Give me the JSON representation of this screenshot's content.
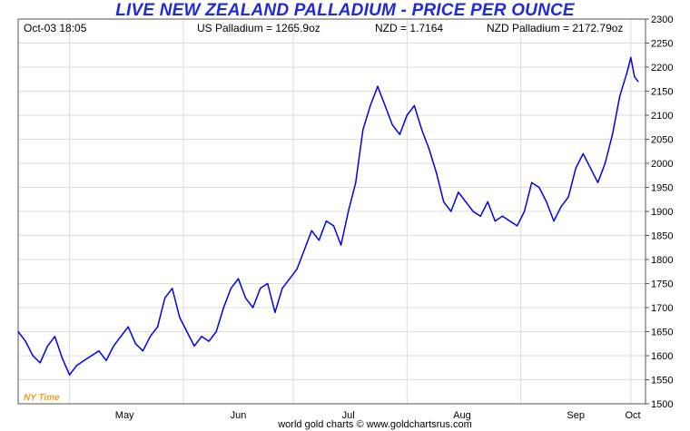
{
  "header": {
    "date_time": "Oct-03  18:05",
    "us_price": "US Palladium = 1265.9oz",
    "fx": "NZD = 1.7164",
    "local_price": "NZD Palladium = 2172.79oz"
  },
  "footer": {
    "timezone": "NY Time",
    "credit": "world gold charts © www.goldchartsrus.com"
  },
  "colors": {
    "line": "#0000ee",
    "title": "#1f2ad8",
    "grid": "#dcdcdc",
    "timezone": "#f0a020"
  },
  "chart_data": {
    "type": "line",
    "title": "LIVE NEW ZEALAND PALLADIUM - PRICE PER OUNCE",
    "xlabel": "",
    "ylabel": "",
    "ylim": [
      1500,
      2300
    ],
    "y_ticks": [
      1500,
      1550,
      1600,
      1650,
      1700,
      1750,
      1800,
      1850,
      1900,
      1950,
      2000,
      2050,
      2100,
      2150,
      2200,
      2250,
      2300
    ],
    "x_ticks": [
      "May",
      "Jun",
      "Jul",
      "Aug",
      "Sep",
      "Oct"
    ],
    "x": [
      "Apr-17",
      "Apr-19",
      "Apr-21",
      "Apr-23",
      "Apr-25",
      "Apr-27",
      "Apr-29",
      "May-01",
      "May-03",
      "May-05",
      "May-07",
      "May-09",
      "May-11",
      "May-13",
      "May-15",
      "May-17",
      "May-19",
      "May-21",
      "May-23",
      "May-25",
      "May-27",
      "May-29",
      "May-31",
      "Jun-02",
      "Jun-04",
      "Jun-06",
      "Jun-08",
      "Jun-10",
      "Jun-12",
      "Jun-14",
      "Jun-16",
      "Jun-18",
      "Jun-20",
      "Jun-22",
      "Jun-24",
      "Jun-26",
      "Jun-28",
      "Jun-30",
      "Jul-02",
      "Jul-04",
      "Jul-06",
      "Jul-08",
      "Jul-10",
      "Jul-12",
      "Jul-14",
      "Jul-16",
      "Jul-18",
      "Jul-20",
      "Jul-22",
      "Jul-24",
      "Jul-26",
      "Jul-28",
      "Jul-30",
      "Aug-01",
      "Aug-03",
      "Aug-05",
      "Aug-07",
      "Aug-09",
      "Aug-11",
      "Aug-13",
      "Aug-15",
      "Aug-17",
      "Aug-19",
      "Aug-21",
      "Aug-23",
      "Aug-25",
      "Aug-27",
      "Aug-29",
      "Aug-31",
      "Sep-02",
      "Sep-04",
      "Sep-06",
      "Sep-08",
      "Sep-10",
      "Sep-12",
      "Sep-14",
      "Sep-16",
      "Sep-18",
      "Sep-20",
      "Sep-22",
      "Sep-24",
      "Sep-26",
      "Sep-28",
      "Sep-30",
      "Oct-01",
      "Oct-02",
      "Oct-03"
    ],
    "series": [
      {
        "values": [
          1650,
          1630,
          1600,
          1585,
          1620,
          1640,
          1595,
          1560,
          1580,
          1590,
          1600,
          1610,
          1590,
          1620,
          1640,
          1660,
          1625,
          1610,
          1640,
          1660,
          1720,
          1740,
          1680,
          1650,
          1620,
          1640,
          1630,
          1650,
          1700,
          1740,
          1760,
          1720,
          1700,
          1740,
          1750,
          1690,
          1740,
          1760,
          1780,
          1820,
          1860,
          1840,
          1880,
          1870,
          1830,
          1900,
          1960,
          2070,
          2120,
          2160,
          2120,
          2080,
          2060,
          2100,
          2120,
          2070,
          2030,
          1980,
          1920,
          1900,
          1940,
          1920,
          1900,
          1890,
          1920,
          1880,
          1890,
          1880,
          1870,
          1900,
          1960,
          1950,
          1920,
          1880,
          1910,
          1930,
          1990,
          2020,
          1990,
          1960,
          2000,
          2060,
          2140,
          2190,
          2220,
          2180,
          2170
        ]
      }
    ],
    "grid": true,
    "legend": "none"
  }
}
